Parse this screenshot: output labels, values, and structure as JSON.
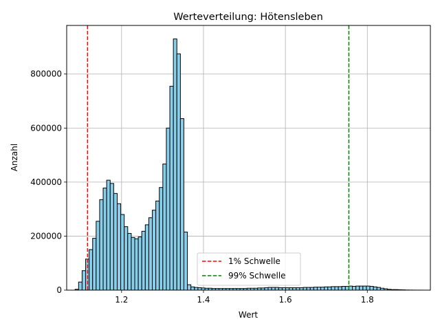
{
  "chart_data": {
    "type": "bar",
    "title": "Werteverteilung: Hötensleben",
    "xlabel": "Wert",
    "ylabel": "Anzahl",
    "xlim": [
      1.066,
      1.954
    ],
    "ylim": [
      0,
      980000
    ],
    "xticks": [
      1.2,
      1.4,
      1.6,
      1.8
    ],
    "xtick_labels": [
      "1.2",
      "1.4",
      "1.6",
      "1.8"
    ],
    "yticks": [
      0,
      200000,
      400000,
      600000,
      800000
    ],
    "ytick_labels": [
      "0",
      "200000",
      "400000",
      "600000",
      "800000"
    ],
    "grid": true,
    "bar_color": "#87ceeb",
    "bar_edge_color": "#000000",
    "bins": {
      "start": 1.0865,
      "width": 0.00857,
      "counts": [
        3000,
        30000,
        72000,
        115000,
        150000,
        192000,
        255000,
        335000,
        378000,
        407000,
        395000,
        358000,
        320000,
        280000,
        235000,
        210000,
        195000,
        190000,
        197000,
        218000,
        242000,
        268000,
        296000,
        330000,
        380000,
        467000,
        600000,
        755000,
        930000,
        875000,
        635000,
        215000,
        20000,
        12000,
        10000,
        9000,
        8000,
        7000,
        7000,
        6000,
        6000,
        6000,
        6000,
        6000,
        6000,
        6000,
        6000,
        6000,
        6000,
        7000,
        7000,
        7000,
        8000,
        8000,
        9000,
        10000,
        10000,
        10000,
        9000,
        9000,
        9000,
        9000,
        9000,
        9000,
        9000,
        10000,
        10000,
        10000,
        11000,
        11000,
        11000,
        12000,
        12000,
        13000,
        13000,
        13000,
        14000,
        14000,
        15000,
        14000,
        15000,
        15000,
        15000,
        15000,
        14000,
        12000,
        10000,
        7000,
        5000,
        3000,
        2000,
        2000,
        1500,
        1000,
        500,
        300,
        200,
        100,
        100,
        0
      ]
    },
    "thresholds": [
      {
        "name": "1% Schwelle",
        "x": 1.117,
        "color": "#ff0000"
      },
      {
        "name": "99% Schwelle",
        "x": 1.755,
        "color": "#008000"
      }
    ],
    "legend_position": "lower-center"
  }
}
